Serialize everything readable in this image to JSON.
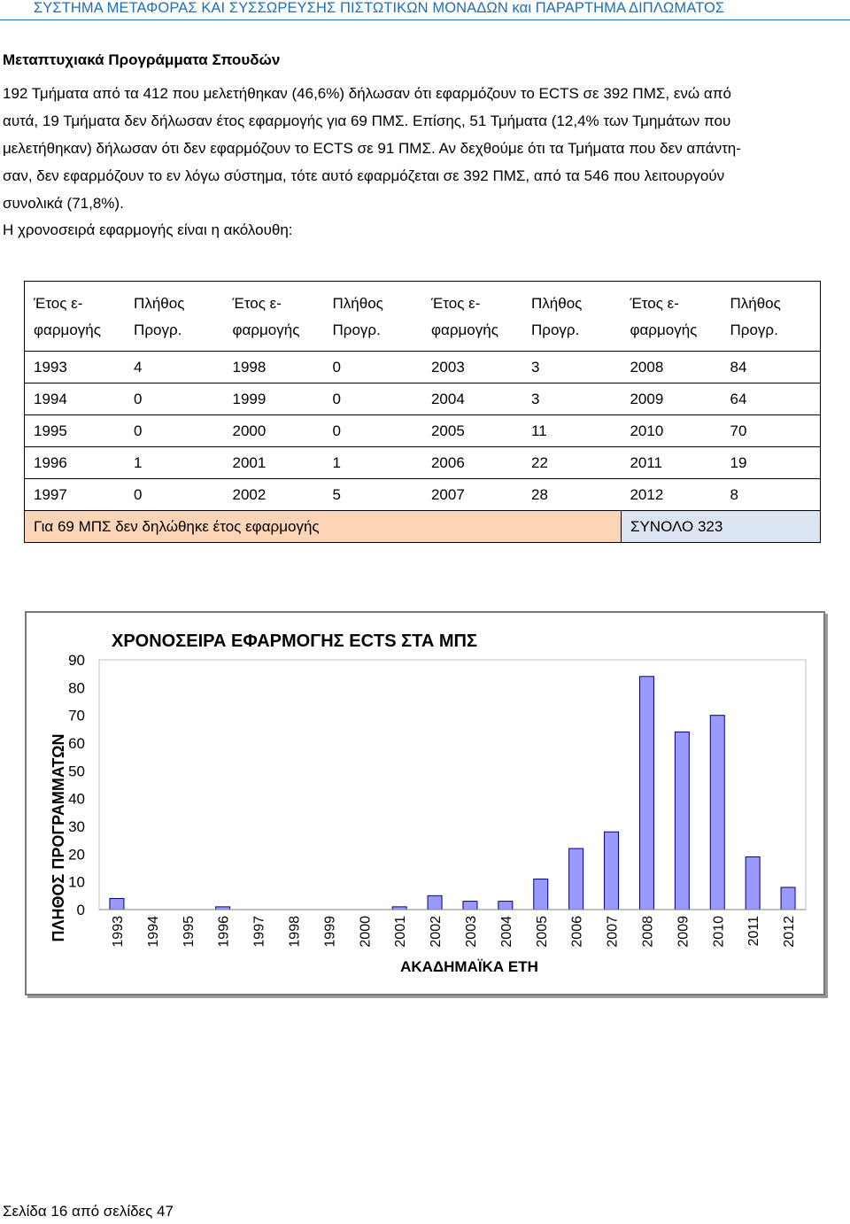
{
  "header": {
    "running_title": "ΣΥΣΤΗΜΑ ΜΕΤΑΦΟΡΑΣ ΚΑΙ ΣΥΣΣΩΡΕΥΣΗΣ ΠΙΣΤΩΤΙΚΩΝ ΜΟΝΑΔΩΝ και ΠΑΡΑΡΤΗΜΑ ΔΙΠΛΩΜΑΤΟΣ",
    "color": "#1f6fb0"
  },
  "section": {
    "title": "Μεταπτυχιακά Προγράμματα Σπουδών",
    "paragraph_lines": [
      "192 Τμήματα από τα 412 που μελετήθηκαν (46,6%) δήλωσαν ότι εφαρμόζουν το ECTS σε 392 ΠΜΣ, ενώ από",
      "αυτά, 19 Τμήματα δεν δήλωσαν έτος εφαρμογής για 69 ΠΜΣ. Επίσης, 51 Τμήματα (12,4% των Τμημάτων που",
      "μελετήθηκαν) δήλωσαν ότι δεν εφαρμόζουν το ECTS σε 91 ΠΜΣ. Αν δεχθούμε ότι τα Τμήματα που δεν απάντη-",
      "σαν, δεν εφαρμόζουν το εν λόγω σύστημα, τότε αυτό εφαρμόζεται σε 392 ΠΜΣ, από τα 546 που λειτουργούν",
      "συνολικά (71,8%)."
    ],
    "intro": "Η χρονοσειρά εφαρμογής είναι η ακόλουθη:"
  },
  "table": {
    "header_year": [
      "Έτος ε-",
      "φαρμογής"
    ],
    "header_count": [
      "Πλήθος",
      "Προγρ."
    ],
    "rows": [
      [
        "1993",
        "4",
        "1998",
        "0",
        "2003",
        "3",
        "2008",
        "84"
      ],
      [
        "1994",
        "0",
        "1999",
        "0",
        "2004",
        "3",
        "2009",
        "64"
      ],
      [
        "1995",
        "0",
        "2000",
        "0",
        "2005",
        "11",
        "2010",
        "70"
      ],
      [
        "1996",
        "1",
        "2001",
        "1",
        "2006",
        "22",
        "2011",
        "19"
      ],
      [
        "1997",
        "0",
        "2002",
        "5",
        "2007",
        "28",
        "2012",
        "8"
      ]
    ],
    "footer_left": "Για 69 ΜΠΣ δεν δηλώθηκε έτος εφαρμογής",
    "footer_right": "ΣΥΝΟΛΟ 323",
    "footer_left_color": "#fbd5b5",
    "footer_right_color": "#dbe5f1"
  },
  "chart_data": {
    "type": "bar",
    "title": "ΧΡΟΝΟΣΕΙΡΑ ΕΦΑΡΜΟΓΗΣ ECTS  ΣΤΑ ΜΠΣ",
    "xlabel": "ΑΚΑΔΗΜΑΪΚΑ ΕΤΗ",
    "ylabel": "ΠΛΗΘΟΣ ΠΡΟΓΡΑΜΜΑΤΩΝ",
    "categories": [
      "1993",
      "1994",
      "1995",
      "1996",
      "1997",
      "1998",
      "1999",
      "2000",
      "2001",
      "2002",
      "2003",
      "2004",
      "2005",
      "2006",
      "2007",
      "2008",
      "2009",
      "2010",
      "2011",
      "2012"
    ],
    "values": [
      4,
      0,
      0,
      1,
      0,
      0,
      0,
      0,
      1,
      5,
      3,
      3,
      11,
      22,
      28,
      84,
      64,
      70,
      19,
      8
    ],
    "ylim": [
      0,
      90
    ],
    "yticks": [
      "0",
      "10",
      "20",
      "30",
      "40",
      "50",
      "60",
      "70",
      "80",
      "90"
    ],
    "bar_color": "#9999ff",
    "bar_edge": "#000080",
    "grid": false
  },
  "footer": {
    "page": "Σελίδα 16 από σελίδες 47"
  }
}
